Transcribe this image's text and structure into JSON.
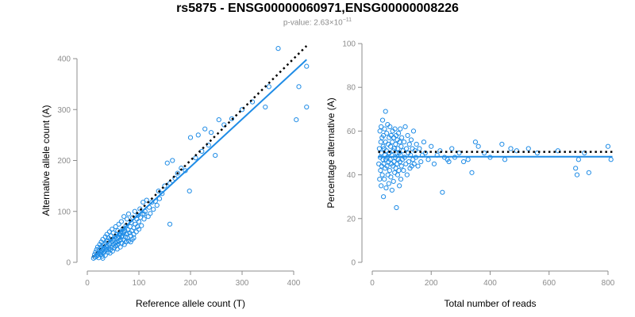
{
  "title": "rs5875 - ENSG00000060971,ENSG00000008226",
  "subtitle": {
    "prefix": "p-value: 2.63×10",
    "exponent": "−11"
  },
  "colors": {
    "points": "#1f8ce6",
    "fit_line": "#1f8ce6",
    "expected_line": "#000000",
    "axes": "#8c8c8c"
  },
  "chart_data": [
    {
      "type": "scatter",
      "xlabel": "Reference allele count (T)",
      "ylabel": "Alternative allele count (A)",
      "xlim": [
        0,
        430
      ],
      "ylim": [
        0,
        420
      ],
      "xticks": [
        0,
        100,
        200,
        300,
        400
      ],
      "yticks": [
        0,
        100,
        200,
        300,
        400
      ],
      "fit_line": {
        "from": [
          10,
          10
        ],
        "to": [
          425,
          398
        ]
      },
      "expected_line": {
        "from": [
          10,
          10
        ],
        "to": [
          425,
          425
        ],
        "style": "dotted"
      },
      "points": [
        [
          12,
          8
        ],
        [
          14,
          15
        ],
        [
          15,
          10
        ],
        [
          16,
          20
        ],
        [
          18,
          12
        ],
        [
          18,
          25
        ],
        [
          20,
          14
        ],
        [
          20,
          30
        ],
        [
          21,
          18
        ],
        [
          22,
          9
        ],
        [
          23,
          24
        ],
        [
          24,
          35
        ],
        [
          25,
          15
        ],
        [
          25,
          28
        ],
        [
          26,
          20
        ],
        [
          27,
          40
        ],
        [
          28,
          22
        ],
        [
          28,
          31
        ],
        [
          29,
          12
        ],
        [
          30,
          26
        ],
        [
          30,
          45
        ],
        [
          31,
          18
        ],
        [
          32,
          35
        ],
        [
          33,
          28
        ],
        [
          34,
          22
        ],
        [
          35,
          50
        ],
        [
          35,
          14
        ],
        [
          36,
          38
        ],
        [
          37,
          30
        ],
        [
          38,
          25
        ],
        [
          38,
          55
        ],
        [
          39,
          42
        ],
        [
          40,
          20
        ],
        [
          40,
          33
        ],
        [
          41,
          48
        ],
        [
          42,
          28
        ],
        [
          43,
          60
        ],
        [
          44,
          36
        ],
        [
          45,
          25
        ],
        [
          45,
          45
        ],
        [
          46,
          52
        ],
        [
          47,
          30
        ],
        [
          48,
          40
        ],
        [
          48,
          65
        ],
        [
          49,
          22
        ],
        [
          50,
          35
        ],
        [
          50,
          58
        ],
        [
          51,
          44
        ],
        [
          52,
          28
        ],
        [
          53,
          50
        ],
        [
          54,
          38
        ],
        [
          55,
          70
        ],
        [
          55,
          32
        ],
        [
          56,
          46
        ],
        [
          57,
          55
        ],
        [
          58,
          40
        ],
        [
          58,
          26
        ],
        [
          59,
          62
        ],
        [
          60,
          48
        ],
        [
          60,
          36
        ],
        [
          61,
          75
        ],
        [
          62,
          42
        ],
        [
          63,
          54
        ],
        [
          64,
          30
        ],
        [
          65,
          60
        ],
        [
          65,
          45
        ],
        [
          66,
          80
        ],
        [
          67,
          38
        ],
        [
          68,
          52
        ],
        [
          69,
          66
        ],
        [
          70,
          44
        ],
        [
          70,
          58
        ],
        [
          71,
          90
        ],
        [
          72,
          35
        ],
        [
          73,
          62
        ],
        [
          74,
          50
        ],
        [
          75,
          72
        ],
        [
          75,
          40
        ],
        [
          76,
          56
        ],
        [
          77,
          85
        ],
        [
          78,
          48
        ],
        [
          79,
          64
        ],
        [
          80,
          95
        ],
        [
          80,
          42
        ],
        [
          82,
          58
        ],
        [
          83,
          70
        ],
        [
          84,
          52
        ],
        [
          85,
          78
        ],
        [
          86,
          62
        ],
        [
          87,
          45
        ],
        [
          88,
          88
        ],
        [
          90,
          68
        ],
        [
          90,
          55
        ],
        [
          92,
          100
        ],
        [
          93,
          75
        ],
        [
          95,
          60
        ],
        [
          96,
          85
        ],
        [
          97,
          70
        ],
        [
          98,
          92
        ],
        [
          100,
          80
        ],
        [
          100,
          65
        ],
        [
          102,
          105
        ],
        [
          103,
          88
        ],
        [
          105,
          72
        ],
        [
          107,
          95
        ],
        [
          108,
          118
        ],
        [
          110,
          85
        ],
        [
          112,
          100
        ],
        [
          115,
          122
        ],
        [
          118,
          90
        ],
        [
          120,
          108
        ],
        [
          122,
          96
        ],
        [
          125,
          118
        ],
        [
          128,
          104
        ],
        [
          132,
          120
        ],
        [
          135,
          112
        ],
        [
          138,
          140
        ],
        [
          140,
          125
        ],
        [
          145,
          135
        ],
        [
          150,
          150
        ],
        [
          155,
          195
        ],
        [
          160,
          75
        ],
        [
          160,
          155
        ],
        [
          165,
          200
        ],
        [
          170,
          165
        ],
        [
          175,
          175
        ],
        [
          182,
          185
        ],
        [
          190,
          180
        ],
        [
          198,
          140
        ],
        [
          200,
          245
        ],
        [
          210,
          205
        ],
        [
          215,
          250
        ],
        [
          222,
          218
        ],
        [
          228,
          262
        ],
        [
          235,
          230
        ],
        [
          240,
          255
        ],
        [
          248,
          210
        ],
        [
          255,
          280
        ],
        [
          265,
          270
        ],
        [
          280,
          282
        ],
        [
          300,
          300
        ],
        [
          320,
          315
        ],
        [
          345,
          305
        ],
        [
          352,
          345
        ],
        [
          370,
          420
        ],
        [
          405,
          280
        ],
        [
          410,
          345
        ],
        [
          425,
          305
        ],
        [
          425,
          385
        ],
        [
          110,
          95
        ],
        [
          58,
          34
        ],
        [
          62,
          50
        ],
        [
          44,
          18
        ],
        [
          36,
          26
        ],
        [
          30,
          8
        ],
        [
          26,
          16
        ],
        [
          84,
          40
        ],
        [
          90,
          48
        ],
        [
          66,
          50
        ],
        [
          72,
          60
        ]
      ]
    },
    {
      "type": "scatter",
      "xlabel": "Total number of reads",
      "ylabel": "Percentage alternative (A)",
      "xlim": [
        0,
        820
      ],
      "ylim": [
        0,
        100
      ],
      "xticks": [
        0,
        200,
        400,
        600,
        800
      ],
      "yticks": [
        0,
        20,
        40,
        60,
        80,
        100
      ],
      "fit_line": {
        "from": [
          20,
          48.3
        ],
        "to": [
          815,
          48.3
        ]
      },
      "expected_line": {
        "from": [
          20,
          50.5
        ],
        "to": [
          815,
          50.5
        ],
        "style": "dotted"
      },
      "points": [
        [
          22,
          45
        ],
        [
          24,
          52
        ],
        [
          25,
          38
        ],
        [
          26,
          60
        ],
        [
          27,
          48
        ],
        [
          28,
          42
        ],
        [
          29,
          55
        ],
        [
          30,
          35
        ],
        [
          30,
          62
        ],
        [
          31,
          50
        ],
        [
          32,
          44
        ],
        [
          33,
          57
        ],
        [
          34,
          40
        ],
        [
          35,
          65
        ],
        [
          36,
          47
        ],
        [
          37,
          53
        ],
        [
          38,
          30
        ],
        [
          38,
          58
        ],
        [
          39,
          45
        ],
        [
          40,
          52
        ],
        [
          41,
          38
        ],
        [
          42,
          61
        ],
        [
          43,
          49
        ],
        [
          44,
          43
        ],
        [
          45,
          69
        ],
        [
          45,
          55
        ],
        [
          46,
          47
        ],
        [
          47,
          34
        ],
        [
          48,
          51
        ],
        [
          49,
          59
        ],
        [
          50,
          44
        ],
        [
          51,
          48
        ],
        [
          52,
          63
        ],
        [
          53,
          40
        ],
        [
          54,
          54
        ],
        [
          55,
          46
        ],
        [
          56,
          36
        ],
        [
          57,
          57
        ],
        [
          58,
          50
        ],
        [
          59,
          42
        ],
        [
          60,
          62
        ],
        [
          61,
          47
        ],
        [
          62,
          53
        ],
        [
          63,
          39
        ],
        [
          64,
          58
        ],
        [
          65,
          45
        ],
        [
          66,
          49
        ],
        [
          67,
          33
        ],
        [
          68,
          55
        ],
        [
          69,
          60
        ],
        [
          70,
          44
        ],
        [
          71,
          51
        ],
        [
          72,
          37
        ],
        [
          73,
          57
        ],
        [
          74,
          46
        ],
        [
          75,
          52
        ],
        [
          76,
          41
        ],
        [
          77,
          61
        ],
        [
          78,
          48
        ],
        [
          79,
          54
        ],
        [
          80,
          43
        ],
        [
          81,
          58
        ],
        [
          82,
          25
        ],
        [
          83,
          50
        ],
        [
          84,
          45
        ],
        [
          85,
          56
        ],
        [
          86,
          40
        ],
        [
          87,
          52
        ],
        [
          88,
          47
        ],
        [
          89,
          59
        ],
        [
          90,
          42
        ],
        [
          91,
          50
        ],
        [
          92,
          35
        ],
        [
          93,
          55
        ],
        [
          94,
          46
        ],
        [
          95,
          61
        ],
        [
          96,
          49
        ],
        [
          97,
          38
        ],
        [
          98,
          53
        ],
        [
          99,
          44
        ],
        [
          100,
          57
        ],
        [
          102,
          47
        ],
        [
          104,
          51
        ],
        [
          106,
          42
        ],
        [
          108,
          55
        ],
        [
          110,
          48
        ],
        [
          112,
          62
        ],
        [
          114,
          45
        ],
        [
          116,
          52
        ],
        [
          118,
          40
        ],
        [
          120,
          58
        ],
        [
          122,
          50
        ],
        [
          124,
          46
        ],
        [
          126,
          54
        ],
        [
          128,
          43
        ],
        [
          130,
          49
        ],
        [
          132,
          56
        ],
        [
          134,
          44
        ],
        [
          136,
          52
        ],
        [
          138,
          47
        ],
        [
          140,
          60
        ],
        [
          142,
          45
        ],
        [
          145,
          51
        ],
        [
          148,
          48
        ],
        [
          150,
          54
        ],
        [
          155,
          44
        ],
        [
          160,
          52
        ],
        [
          165,
          46
        ],
        [
          170,
          49
        ],
        [
          175,
          55
        ],
        [
          180,
          50
        ],
        [
          190,
          47
        ],
        [
          200,
          53
        ],
        [
          210,
          45
        ],
        [
          220,
          49
        ],
        [
          230,
          51
        ],
        [
          238,
          32
        ],
        [
          245,
          48
        ],
        [
          255,
          47
        ],
        [
          260,
          46
        ],
        [
          270,
          52
        ],
        [
          280,
          48
        ],
        [
          295,
          50
        ],
        [
          310,
          46
        ],
        [
          325,
          47
        ],
        [
          338,
          41
        ],
        [
          350,
          55
        ],
        [
          360,
          53
        ],
        [
          380,
          50
        ],
        [
          400,
          48
        ],
        [
          440,
          54
        ],
        [
          450,
          47
        ],
        [
          470,
          52
        ],
        [
          490,
          51
        ],
        [
          530,
          52
        ],
        [
          560,
          50
        ],
        [
          630,
          51
        ],
        [
          690,
          43
        ],
        [
          695,
          40
        ],
        [
          700,
          47
        ],
        [
          720,
          50
        ],
        [
          735,
          41
        ],
        [
          800,
          53
        ],
        [
          810,
          47
        ]
      ]
    }
  ]
}
